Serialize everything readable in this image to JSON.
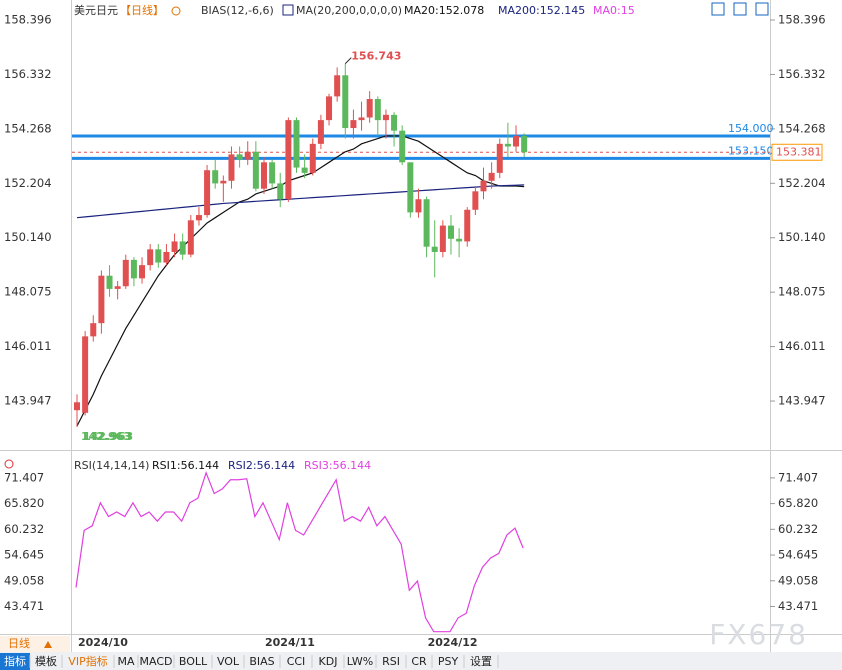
{
  "header": {
    "symbol": "美元日元",
    "period": "【日线】",
    "indicator": "BIAS(12,-6,6)",
    "ma_params": "MA(20,200,0,0,0,0)",
    "ma0": "MA0:15"
  },
  "chart_data": [
    {
      "type": "candlestick",
      "categories": [
        "2024/10",
        null,
        null,
        null,
        null,
        null,
        null,
        null,
        null,
        null,
        null,
        null,
        null,
        null,
        null,
        null,
        null,
        null,
        null,
        null,
        null,
        null,
        null,
        "2024/11",
        null,
        null,
        null,
        null,
        null,
        null,
        null,
        null,
        null,
        null,
        null,
        null,
        null,
        null,
        null,
        null,
        null,
        null,
        null,
        "2024/12",
        null,
        null,
        null,
        null,
        null,
        null,
        null,
        null,
        null,
        null,
        null,
        null
      ],
      "open": [
        143.6,
        143.5,
        146.4,
        146.9,
        148.7,
        148.2,
        148.3,
        149.3,
        148.6,
        149.1,
        149.7,
        149.2,
        149.6,
        150.0,
        149.5,
        150.8,
        151.0,
        152.7,
        152.2,
        152.3,
        153.3,
        153.1,
        153.4,
        152.0,
        153.0,
        152.2,
        151.6,
        154.6,
        152.8,
        152.6,
        153.7,
        154.6,
        155.5,
        156.3,
        154.3,
        154.6,
        154.7,
        155.4,
        154.6,
        154.8,
        154.2,
        153.0,
        151.1,
        151.6,
        149.8,
        149.6,
        150.6,
        150.1,
        150.0,
        151.2,
        151.9,
        152.3,
        152.6,
        153.7,
        153.6,
        154.0
      ],
      "high": [
        144.2,
        146.6,
        147.2,
        148.9,
        149.1,
        148.5,
        149.5,
        149.4,
        149.4,
        149.9,
        149.9,
        149.9,
        150.3,
        150.3,
        151.0,
        151.3,
        152.9,
        153.1,
        152.5,
        153.6,
        153.6,
        153.8,
        153.8,
        153.2,
        153.1,
        152.6,
        154.7,
        154.7,
        153.3,
        153.9,
        154.8,
        155.6,
        156.6,
        156.743,
        155.0,
        155.3,
        155.7,
        155.5,
        155.0,
        154.9,
        154.4,
        153.0,
        152.0,
        151.7,
        150.8,
        150.8,
        151.0,
        150.5,
        151.3,
        152.1,
        152.8,
        153.0,
        153.9,
        154.5,
        154.4,
        154.1
      ],
      "low": [
        142.963,
        143.4,
        146.2,
        146.5,
        147.9,
        147.8,
        148.2,
        148.3,
        148.4,
        148.9,
        149.0,
        149.1,
        149.4,
        149.3,
        149.4,
        150.6,
        150.9,
        152.0,
        151.5,
        152.0,
        152.8,
        152.9,
        151.9,
        151.8,
        152.0,
        151.3,
        151.5,
        152.6,
        152.4,
        152.5,
        153.5,
        154.4,
        155.3,
        153.9,
        153.9,
        154.2,
        154.5,
        154.0,
        153.9,
        153.6,
        152.9,
        150.9,
        150.9,
        149.4,
        148.639,
        149.4,
        149.5,
        149.4,
        149.8,
        151.0,
        151.6,
        152.0,
        152.4,
        153.2,
        153.4,
        153.2
      ],
      "close": [
        143.9,
        146.4,
        146.9,
        148.7,
        148.2,
        148.3,
        149.3,
        148.6,
        149.1,
        149.7,
        149.2,
        149.6,
        150.0,
        149.5,
        150.8,
        151.0,
        152.7,
        152.2,
        152.3,
        153.3,
        153.1,
        153.4,
        152.0,
        153.0,
        152.2,
        151.6,
        154.6,
        152.8,
        152.6,
        153.7,
        154.6,
        155.5,
        156.3,
        154.3,
        154.6,
        154.7,
        155.4,
        154.6,
        154.8,
        154.2,
        153.0,
        151.1,
        151.6,
        149.8,
        149.6,
        150.6,
        150.1,
        150.0,
        151.2,
        151.9,
        152.3,
        152.6,
        153.7,
        153.6,
        154.0,
        153.381
      ],
      "up_color": "#e05050",
      "down_color": "#5cb85c",
      "series": [
        {
          "name": "MA20:152.078",
          "color": "#111111",
          "values": [
            143.0,
            143.6,
            144.2,
            144.9,
            145.5,
            146.1,
            146.7,
            147.2,
            147.7,
            148.2,
            148.7,
            149.1,
            149.5,
            149.8,
            150.1,
            150.4,
            150.7,
            150.9,
            151.1,
            151.3,
            151.5,
            151.6,
            151.8,
            151.9,
            152.0,
            152.1,
            152.3,
            152.4,
            152.5,
            152.6,
            152.8,
            153.0,
            153.2,
            153.4,
            153.5,
            153.7,
            153.8,
            153.9,
            154.0,
            154.0,
            154.0,
            153.9,
            153.8,
            153.6,
            153.4,
            153.2,
            153.0,
            152.8,
            152.6,
            152.5,
            152.3,
            152.2,
            152.1,
            152.1,
            152.1,
            152.078
          ]
        },
        {
          "name": "MA200:152.145",
          "color": "#1a237e",
          "values": [
            150.9,
            150.93,
            150.96,
            150.99,
            151.02,
            151.05,
            151.08,
            151.11,
            151.14,
            151.17,
            151.2,
            151.23,
            151.26,
            151.29,
            151.32,
            151.35,
            151.38,
            151.41,
            151.44,
            151.46,
            151.48,
            151.5,
            151.52,
            151.54,
            151.56,
            151.58,
            151.6,
            151.62,
            151.64,
            151.66,
            151.68,
            151.7,
            151.72,
            151.74,
            151.76,
            151.78,
            151.8,
            151.82,
            151.84,
            151.86,
            151.88,
            151.9,
            151.92,
            151.94,
            151.96,
            151.98,
            152.0,
            152.02,
            152.04,
            152.06,
            152.08,
            152.1,
            152.11,
            152.12,
            152.13,
            152.145
          ]
        }
      ],
      "levels": [
        {
          "value": 154,
          "label": "154.000",
          "color": "#1e88e5"
        },
        {
          "value": 153.15,
          "label": "153.150",
          "color": "#1e88e5"
        }
      ],
      "last_price": 153.381,
      "ylim": [
        142.28,
        158.7
      ],
      "yticks": [
        158.396,
        156.332,
        154.268,
        152.204,
        {
          "value": 150.14,
          "label": "150.140"
        },
        148.075,
        146.011,
        143.947
      ]
    },
    {
      "type": "line",
      "title": "RSI(14,14,14)",
      "series": [
        {
          "name": "RSI1:56.144",
          "color": "#111111"
        },
        {
          "name": "RSI2:56.144",
          "color": "#1a237e"
        },
        {
          "name": "RSI3:56.144",
          "color": "#e040e0",
          "values": [
            47.6,
            60,
            61,
            66,
            63,
            64,
            63,
            66,
            63,
            64,
            62,
            64,
            64,
            62,
            66,
            67,
            72.5,
            68,
            69,
            71,
            71,
            71.2,
            63,
            66,
            62,
            58,
            66,
            60,
            59,
            62,
            65,
            68,
            71,
            62,
            63,
            62,
            65,
            61,
            63,
            60,
            57,
            47,
            49,
            41,
            38,
            38,
            38,
            41,
            42,
            48,
            52,
            54,
            55,
            59,
            60.5,
            56.144
          ]
        }
      ],
      "ylim": [
        37.5,
        74.2
      ],
      "yticks": [
        71.407,
        {
          "value": 65.82,
          "label": "65.820"
        },
        60.232,
        54.645,
        49.058,
        43.471
      ]
    }
  ],
  "period_tab": "日线",
  "toolbar": [
    "指标",
    "模板",
    "VIP指标",
    "MA",
    "MACD",
    "BOLL",
    "VOL",
    "BIAS",
    "CCI",
    "KDJ",
    "LW%",
    "RSI",
    "CR",
    "PSY",
    "设置"
  ],
  "watermark": "FX678"
}
